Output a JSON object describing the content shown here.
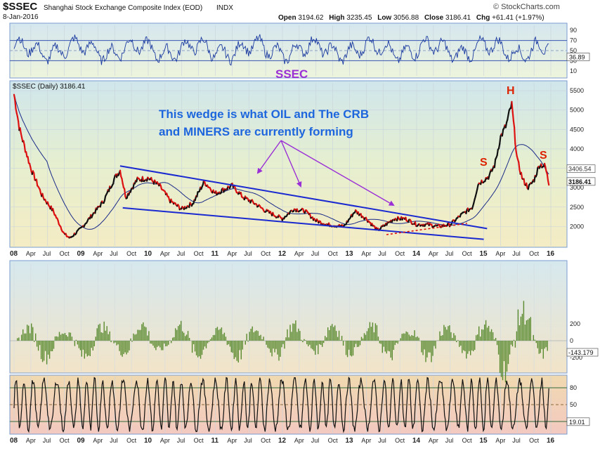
{
  "header": {
    "symbol": "$SSEC",
    "name": "Shanghai Stock Exchange Composite Index (EOD)",
    "exchange": "INDX",
    "date": "8-Jan-2016",
    "watermark": "© StockCharts.com",
    "quote": {
      "open_label": "Open",
      "open": "3194.62",
      "high_label": "High",
      "high": "3235.45",
      "low_label": "Low",
      "low": "3056.88",
      "close_label": "Close",
      "close": "3186.41",
      "chg_label": "Chg",
      "chg": "+61.41 (+1.97%)"
    }
  },
  "colors": {
    "price_line": "#111111",
    "price_down": "#dd1111",
    "moving_average": "#1a2a88",
    "wedge_lines": "#1a2ad0",
    "arrows": "#9b2fd6",
    "callout_text": "#1e66dd",
    "pattern_text": "#dd2200",
    "title_text": "#9b2fd6",
    "macd_hist": "#5a8a2e",
    "panel_border": "#7a9bd1"
  },
  "chart_data": [
    {
      "type": "line",
      "panel": "rsi",
      "title": "SSEC",
      "y_ticks": [
        10,
        30,
        50,
        70,
        90
      ],
      "ylim": [
        0,
        100
      ],
      "last_value_label": "36.89",
      "reference_lines": [
        30,
        50,
        70
      ]
    },
    {
      "type": "line",
      "panel": "price",
      "legend": "$SSEC (Daily) 3186.41",
      "y_ticks": [
        2000,
        2500,
        3000,
        3500,
        4000,
        4500,
        5000,
        5500
      ],
      "ylim": [
        1500,
        5700
      ],
      "last_value_labels": [
        "3406.54",
        "3186.41"
      ],
      "x_ticks": [
        "08",
        "Apr",
        "Jul",
        "Oct",
        "09",
        "Apr",
        "Jul",
        "Oct",
        "10",
        "Apr",
        "Jul",
        "Oct",
        "11",
        "Apr",
        "Jul",
        "Oct",
        "12",
        "Apr",
        "Jul",
        "Oct",
        "13",
        "Apr",
        "Jul",
        "Oct",
        "14",
        "Apr",
        "Jul",
        "Oct",
        "15",
        "Apr",
        "Jul",
        "Oct",
        "16"
      ],
      "series": [
        {
          "points": [
            [
              "2008-01",
              5400
            ],
            [
              "2008-02",
              4500
            ],
            [
              "2008-04",
              3500
            ],
            [
              "2008-06",
              2800
            ],
            [
              "2008-08",
              2400
            ],
            [
              "2008-10",
              1800
            ],
            [
              "2008-11",
              1700
            ],
            [
              "2009-01",
              1950
            ],
            [
              "2009-03",
              2300
            ],
            [
              "2009-05",
              2650
            ],
            [
              "2009-07",
              3250
            ],
            [
              "2009-08",
              3450
            ],
            [
              "2009-09",
              2750
            ],
            [
              "2009-11",
              3200
            ],
            [
              "2010-01",
              3250
            ],
            [
              "2010-03",
              3050
            ],
            [
              "2010-05",
              2650
            ],
            [
              "2010-07",
              2450
            ],
            [
              "2010-09",
              2600
            ],
            [
              "2010-11",
              3150
            ],
            [
              "2011-01",
              2850
            ],
            [
              "2011-04",
              3050
            ],
            [
              "2011-06",
              2750
            ],
            [
              "2011-08",
              2600
            ],
            [
              "2011-10",
              2400
            ],
            [
              "2012-01",
              2200
            ],
            [
              "2012-03",
              2450
            ],
            [
              "2012-05",
              2400
            ],
            [
              "2012-07",
              2150
            ],
            [
              "2012-09",
              2050
            ],
            [
              "2012-12",
              2000
            ],
            [
              "2013-02",
              2400
            ],
            [
              "2013-04",
              2200
            ],
            [
              "2013-06",
              1900
            ],
            [
              "2013-09",
              2200
            ],
            [
              "2013-11",
              2200
            ],
            [
              "2014-01",
              2050
            ],
            [
              "2014-03",
              2050
            ],
            [
              "2014-05",
              2000
            ],
            [
              "2014-07",
              2050
            ],
            [
              "2014-09",
              2300
            ],
            [
              "2014-11",
              2500
            ],
            [
              "2014-12",
              3100
            ],
            [
              "2015-02",
              3300
            ],
            [
              "2015-03",
              3600
            ],
            [
              "2015-04",
              4300
            ],
            [
              "2015-05",
              4600
            ],
            [
              "2015-06",
              5150
            ],
            [
              "2015-07",
              3700
            ],
            [
              "2015-08",
              3200
            ],
            [
              "2015-09",
              3000
            ],
            [
              "2015-10",
              3200
            ],
            [
              "2015-11",
              3600
            ],
            [
              "2015-12",
              3550
            ],
            [
              "2016-01",
              3100
            ]
          ]
        }
      ],
      "annotations": {
        "callout": [
          "This wedge is what OIL and The CRB",
          "and MINERS  are currently forming"
        ],
        "pattern_left_shoulder": "S",
        "pattern_head": "H",
        "pattern_right_shoulder": "S"
      }
    },
    {
      "type": "bar",
      "panel": "macd_histogram",
      "y_ticks": [
        -200,
        0,
        200
      ],
      "ylim": [
        -350,
        350
      ],
      "last_value_label": "-143.179"
    },
    {
      "type": "line",
      "panel": "oscillator",
      "y_ticks": [
        50,
        80
      ],
      "ylim": [
        0,
        100
      ],
      "last_value_label": "19.01",
      "reference_lines": [
        20,
        50,
        80
      ],
      "x_ticks": [
        "08",
        "Apr",
        "Jul",
        "Oct",
        "09",
        "Apr",
        "Jul",
        "Oct",
        "10",
        "Apr",
        "Jul",
        "Oct",
        "11",
        "Apr",
        "Jul",
        "Oct",
        "12",
        "Apr",
        "Jul",
        "Oct",
        "13",
        "Apr",
        "Jul",
        "Oct",
        "14",
        "Apr",
        "Jul",
        "Oct",
        "15",
        "Apr",
        "Jul",
        "Oct",
        "16"
      ]
    }
  ]
}
